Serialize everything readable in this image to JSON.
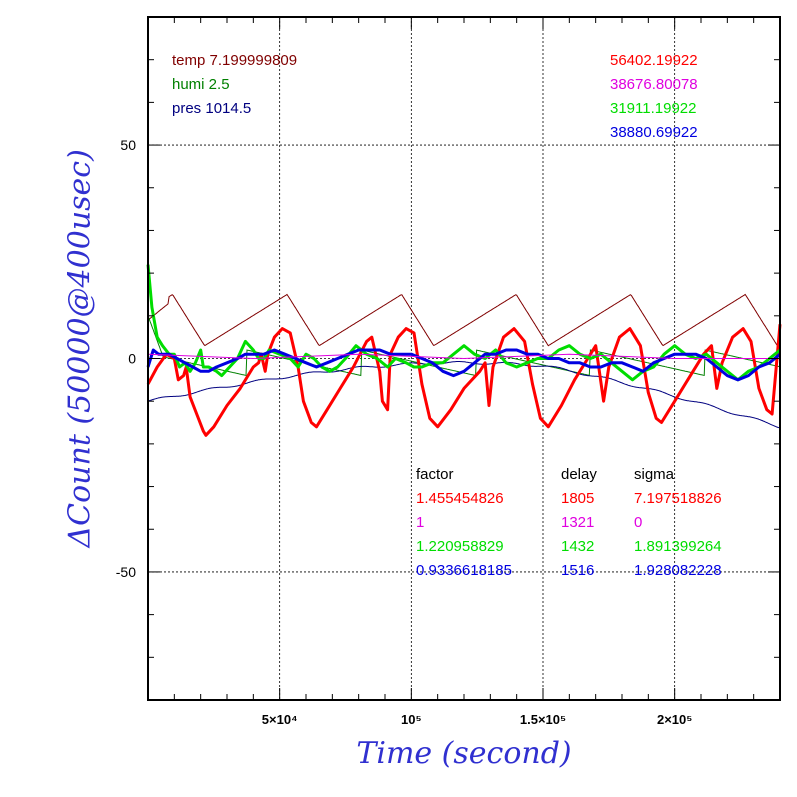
{
  "chart_data": {
    "type": "line",
    "xlabel": "Time (second)",
    "ylabel": "ΔCount (50000@400usec)",
    "xlim": [
      0,
      240000
    ],
    "ylim": [
      -80,
      80
    ],
    "x_tick_labels": [
      {
        "value": 50000,
        "label": "5×10⁴"
      },
      {
        "value": 100000,
        "label": "10⁵"
      },
      {
        "value": 150000,
        "label": "1.5×10⁵"
      },
      {
        "value": 200000,
        "label": "2×10⁵"
      }
    ],
    "y_tick_labels": [
      {
        "value": 50,
        "label": "50"
      },
      {
        "value": 0,
        "label": "0"
      },
      {
        "value": -50,
        "label": "-50"
      }
    ],
    "grid": true,
    "environment": [
      {
        "label": "temp 7.199999809",
        "color": "#800000"
      },
      {
        "label": "humi 2.5",
        "color": "#008000"
      },
      {
        "label": "pres 1014.5",
        "color": "#000080"
      }
    ],
    "series_means": [
      {
        "value": "56402.19922",
        "color": "#ff0000"
      },
      {
        "value": "38676.80078",
        "color": "#e000e0"
      },
      {
        "value": "31911.19922",
        "color": "#00dd00"
      },
      {
        "value": "38880.69922",
        "color": "#0000e0"
      }
    ],
    "stats_headers": {
      "factor": "factor",
      "delay": "delay",
      "sigma": "sigma"
    },
    "stats_rows": [
      {
        "factor": "1.455454826",
        "delay": "1805",
        "sigma": "7.197518826",
        "color": "#ff0000"
      },
      {
        "factor": "1",
        "delay": "1321",
        "sigma": "0",
        "color": "#e000e0"
      },
      {
        "factor": "1.220958829",
        "delay": "1432",
        "sigma": "1.891399264",
        "color": "#00dd00"
      },
      {
        "factor": "0.9336618185",
        "delay": "1516",
        "sigma": "1.928082228",
        "color": "#0000e0"
      }
    ],
    "period": 43500,
    "series": [
      {
        "color": "#ff0000",
        "values": [
          [
            0,
            -6
          ],
          [
            3500,
            -2
          ],
          [
            7000,
            1
          ],
          [
            10000,
            0
          ],
          [
            11500,
            -5
          ],
          [
            13500,
            -4
          ],
          [
            14500,
            -2
          ],
          [
            16000,
            -9
          ],
          [
            18500,
            -13
          ],
          [
            21000,
            -17
          ],
          [
            22000,
            -18
          ],
          [
            25000,
            -16
          ],
          [
            30000,
            -11
          ],
          [
            35000,
            -7
          ],
          [
            40000,
            -2
          ],
          [
            42000,
            -1
          ],
          [
            43000,
            1
          ],
          [
            44500,
            -3
          ],
          [
            45500,
            1
          ],
          [
            48000,
            5
          ],
          [
            51000,
            7
          ],
          [
            54000,
            6
          ],
          [
            57000,
            -2
          ],
          [
            59000,
            -10
          ],
          [
            62000,
            -15
          ],
          [
            64000,
            -16
          ],
          [
            68000,
            -12
          ],
          [
            73000,
            -7
          ],
          [
            78000,
            -2
          ],
          [
            83000,
            4
          ],
          [
            85000,
            5
          ],
          [
            88000,
            -3
          ],
          [
            89000,
            -10
          ],
          [
            91000,
            -12
          ],
          [
            92000,
            1
          ],
          [
            95000,
            5
          ],
          [
            98000,
            7
          ],
          [
            101000,
            6
          ],
          [
            104000,
            -6
          ],
          [
            107000,
            -14
          ],
          [
            110000,
            -16
          ],
          [
            115000,
            -12
          ],
          [
            120000,
            -7
          ],
          [
            126000,
            -3
          ],
          [
            128000,
            -1
          ],
          [
            129500,
            -11
          ],
          [
            131000,
            -2
          ],
          [
            135000,
            5
          ],
          [
            139000,
            7
          ],
          [
            143000,
            4
          ],
          [
            146000,
            -6
          ],
          [
            149000,
            -14
          ],
          [
            152000,
            -16
          ],
          [
            157000,
            -11
          ],
          [
            162000,
            -5
          ],
          [
            167000,
            0
          ],
          [
            170000,
            3
          ],
          [
            173000,
            -10
          ],
          [
            175000,
            -2
          ],
          [
            179000,
            5
          ],
          [
            183000,
            7
          ],
          [
            187000,
            3
          ],
          [
            190000,
            -8
          ],
          [
            193000,
            -14
          ],
          [
            195000,
            -15
          ],
          [
            200000,
            -10
          ],
          [
            205000,
            -5
          ],
          [
            211000,
            1
          ],
          [
            214000,
            3
          ],
          [
            216000,
            -7
          ],
          [
            218000,
            -1
          ],
          [
            222000,
            5
          ],
          [
            226000,
            7
          ],
          [
            229000,
            4
          ],
          [
            232000,
            -7
          ],
          [
            235000,
            -12
          ],
          [
            237000,
            -13
          ],
          [
            240000,
            8
          ]
        ]
      },
      {
        "color": "#00dd00",
        "values": [
          [
            0,
            22
          ],
          [
            1500,
            12
          ],
          [
            3500,
            5
          ],
          [
            5500,
            3
          ],
          [
            8000,
            1
          ],
          [
            10000,
            1
          ],
          [
            12000,
            -2
          ],
          [
            14000,
            -1
          ],
          [
            16000,
            -3
          ],
          [
            18000,
            -1
          ],
          [
            20000,
            2
          ],
          [
            21000,
            -2
          ],
          [
            23000,
            -2
          ],
          [
            26000,
            -3
          ],
          [
            28000,
            -4
          ],
          [
            31000,
            -2
          ],
          [
            34000,
            0
          ],
          [
            37000,
            4
          ],
          [
            40000,
            2
          ],
          [
            42000,
            0
          ],
          [
            44000,
            0
          ],
          [
            46000,
            2
          ],
          [
            50000,
            1
          ],
          [
            54000,
            0
          ],
          [
            57000,
            -2
          ],
          [
            60000,
            1
          ],
          [
            63000,
            0
          ],
          [
            66000,
            -2
          ],
          [
            69000,
            -3
          ],
          [
            72000,
            -2
          ],
          [
            75000,
            0
          ],
          [
            79000,
            3
          ],
          [
            83000,
            1
          ],
          [
            87000,
            0
          ],
          [
            91000,
            -2
          ],
          [
            94000,
            0
          ],
          [
            98000,
            -1
          ],
          [
            101000,
            -2
          ],
          [
            104000,
            -2
          ],
          [
            108000,
            -1
          ],
          [
            112000,
            -1
          ],
          [
            116000,
            1
          ],
          [
            120000,
            3
          ],
          [
            124000,
            1
          ],
          [
            128000,
            0
          ],
          [
            132000,
            2
          ],
          [
            136000,
            -1
          ],
          [
            140000,
            -2
          ],
          [
            144000,
            -1
          ],
          [
            148000,
            0
          ],
          [
            152000,
            0
          ],
          [
            156000,
            2
          ],
          [
            160000,
            3
          ],
          [
            164000,
            1
          ],
          [
            168000,
            0
          ],
          [
            172000,
            1
          ],
          [
            176000,
            -1
          ],
          [
            180000,
            -3
          ],
          [
            184000,
            -5
          ],
          [
            188000,
            -3
          ],
          [
            192000,
            -2
          ],
          [
            196000,
            1
          ],
          [
            200000,
            3
          ],
          [
            204000,
            1
          ],
          [
            208000,
            0
          ],
          [
            212000,
            1
          ],
          [
            216000,
            -1
          ],
          [
            220000,
            -3
          ],
          [
            224000,
            -5
          ],
          [
            228000,
            -3
          ],
          [
            232000,
            -2
          ],
          [
            236000,
            0
          ],
          [
            240000,
            2
          ]
        ]
      },
      {
        "color": "#0000e0",
        "values": [
          [
            0,
            -2
          ],
          [
            2000,
            2
          ],
          [
            4000,
            1
          ],
          [
            8000,
            1
          ],
          [
            11000,
            0
          ],
          [
            14000,
            -1
          ],
          [
            17000,
            -2
          ],
          [
            20000,
            -3
          ],
          [
            23000,
            -3
          ],
          [
            26000,
            -2
          ],
          [
            30000,
            -1
          ],
          [
            34000,
            0
          ],
          [
            37000,
            1
          ],
          [
            40000,
            1
          ],
          [
            44000,
            1
          ],
          [
            48000,
            2
          ],
          [
            52000,
            1
          ],
          [
            56000,
            0
          ],
          [
            60000,
            -1
          ],
          [
            64000,
            -2
          ],
          [
            68000,
            -1
          ],
          [
            72000,
            0
          ],
          [
            76000,
            1
          ],
          [
            80000,
            2
          ],
          [
            84000,
            2
          ],
          [
            88000,
            2
          ],
          [
            92000,
            1
          ],
          [
            96000,
            1
          ],
          [
            100000,
            1
          ],
          [
            104000,
            0
          ],
          [
            108000,
            -1
          ],
          [
            112000,
            -3
          ],
          [
            116000,
            -4
          ],
          [
            120000,
            -3
          ],
          [
            124000,
            -1
          ],
          [
            128000,
            1
          ],
          [
            132000,
            1
          ],
          [
            136000,
            2
          ],
          [
            140000,
            2
          ],
          [
            144000,
            1
          ],
          [
            148000,
            1
          ],
          [
            152000,
            0
          ],
          [
            156000,
            0
          ],
          [
            160000,
            -1
          ],
          [
            164000,
            -1
          ],
          [
            168000,
            -2
          ],
          [
            172000,
            -2
          ],
          [
            176000,
            -1
          ],
          [
            180000,
            -1
          ],
          [
            184000,
            -2
          ],
          [
            188000,
            -3
          ],
          [
            192000,
            -1
          ],
          [
            196000,
            0
          ],
          [
            200000,
            1
          ],
          [
            204000,
            1
          ],
          [
            208000,
            1
          ],
          [
            212000,
            0
          ],
          [
            216000,
            -2
          ],
          [
            220000,
            -4
          ],
          [
            224000,
            -5
          ],
          [
            228000,
            -4
          ],
          [
            232000,
            -2
          ],
          [
            236000,
            -1
          ],
          [
            240000,
            1
          ]
        ]
      },
      {
        "color": "#e000e0",
        "values": [
          [
            0,
            1
          ],
          [
            40000,
            0
          ],
          [
            80000,
            1
          ],
          [
            120000,
            0
          ],
          [
            160000,
            1
          ],
          [
            200000,
            0
          ],
          [
            240000,
            0
          ]
        ]
      }
    ],
    "thin_series": [
      {
        "color": "#800000",
        "kind": "temp"
      },
      {
        "color": "#008000",
        "kind": "humi"
      },
      {
        "color": "#000080",
        "kind": "pres"
      }
    ]
  }
}
